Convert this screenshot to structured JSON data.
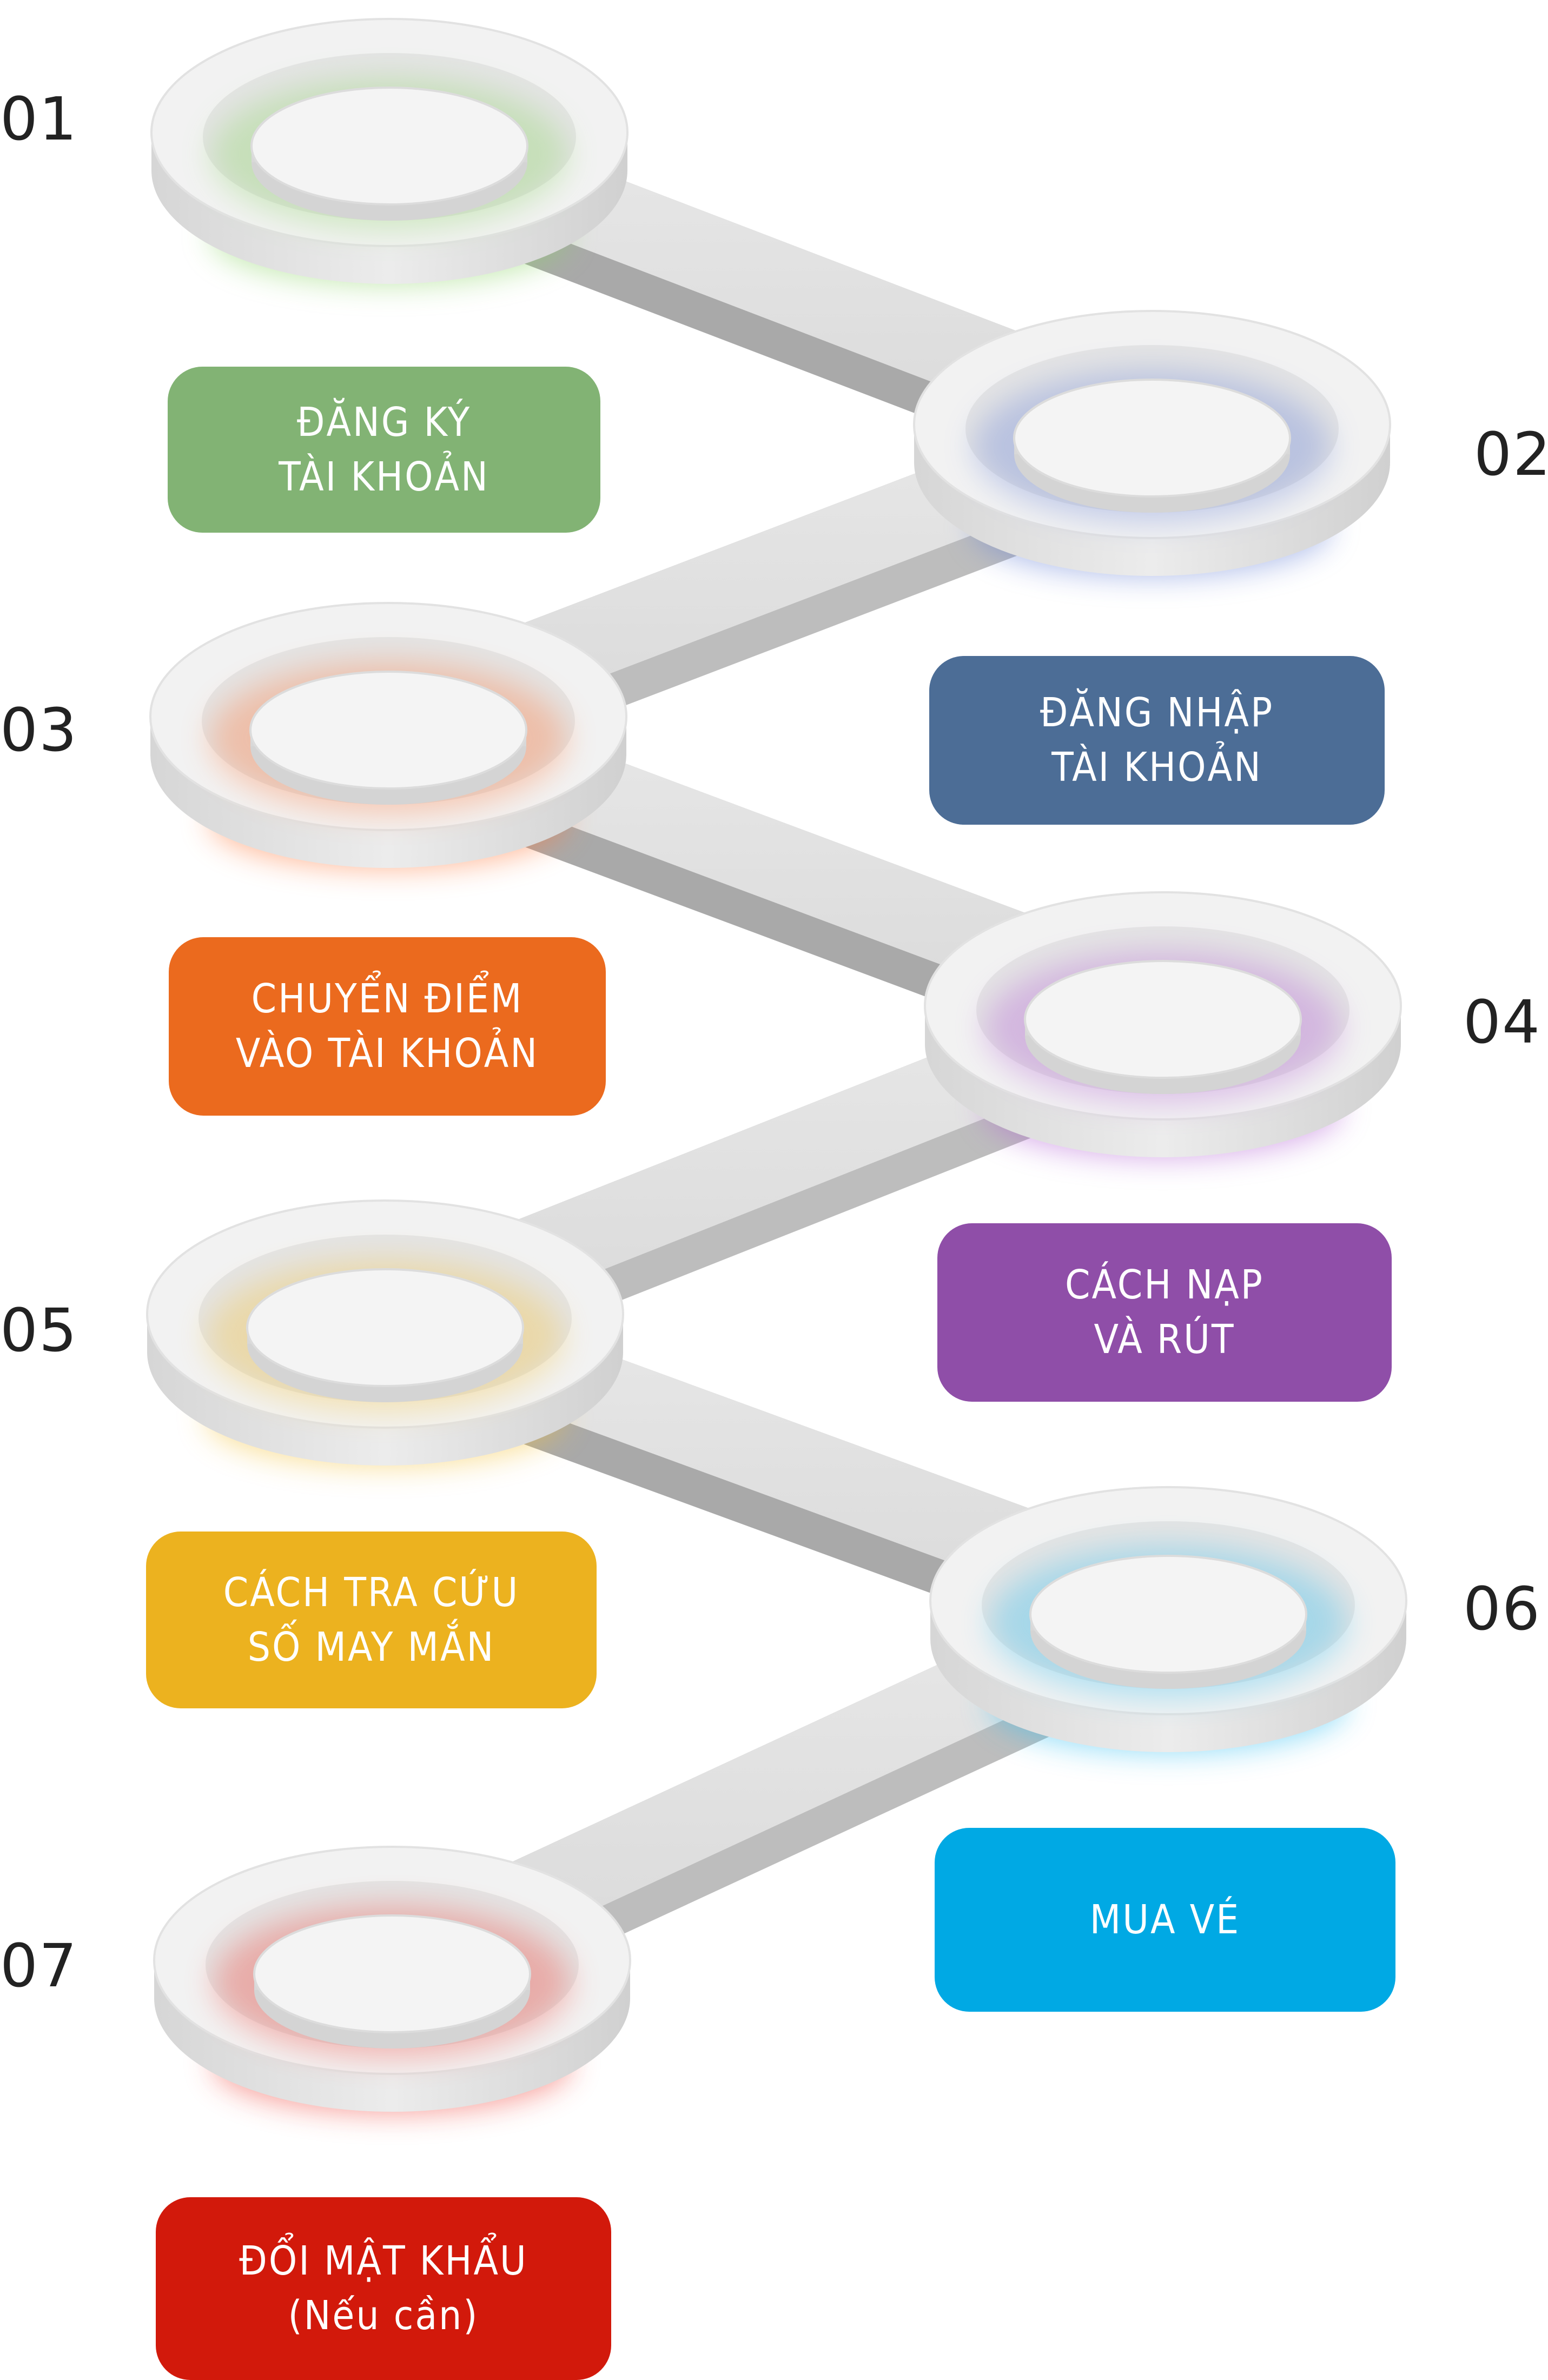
{
  "steps": [
    {
      "num": "01",
      "line1": "ĐĂNG KÝ",
      "line2": "TÀI KHOẢN",
      "color": "#82b374",
      "glow": "#8fd66a"
    },
    {
      "num": "02",
      "line1": "ĐĂNG NHẬP",
      "line2": "TÀI KHOẢN",
      "color": "#4c6d96",
      "glow": "#6b84d8"
    },
    {
      "num": "03",
      "line1": "CHUYỂN ĐIỂM",
      "line2": "VÀO TÀI KHOẢN",
      "color": "#eb6a1e",
      "glow": "#ff7a3c"
    },
    {
      "num": "04",
      "line1": "CÁCH NẠP",
      "line2": "VÀ RÚT",
      "color": "#8f4ea8",
      "glow": "#b463d6"
    },
    {
      "num": "05",
      "line1": "CÁCH TRA CỨU",
      "line2": "SỐ MAY MẮN",
      "color": "#ecb21f",
      "glow": "#f5c33d"
    },
    {
      "num": "06",
      "line1": "MUA VÉ",
      "line2": "",
      "color": "#00a9e4",
      "glow": "#36c0f2"
    },
    {
      "num": "07",
      "line1": "ĐỔI MẬT KHẨU",
      "line2": "(Nếu cần)",
      "color": "#d2190b",
      "glow": "#f0443a"
    }
  ]
}
